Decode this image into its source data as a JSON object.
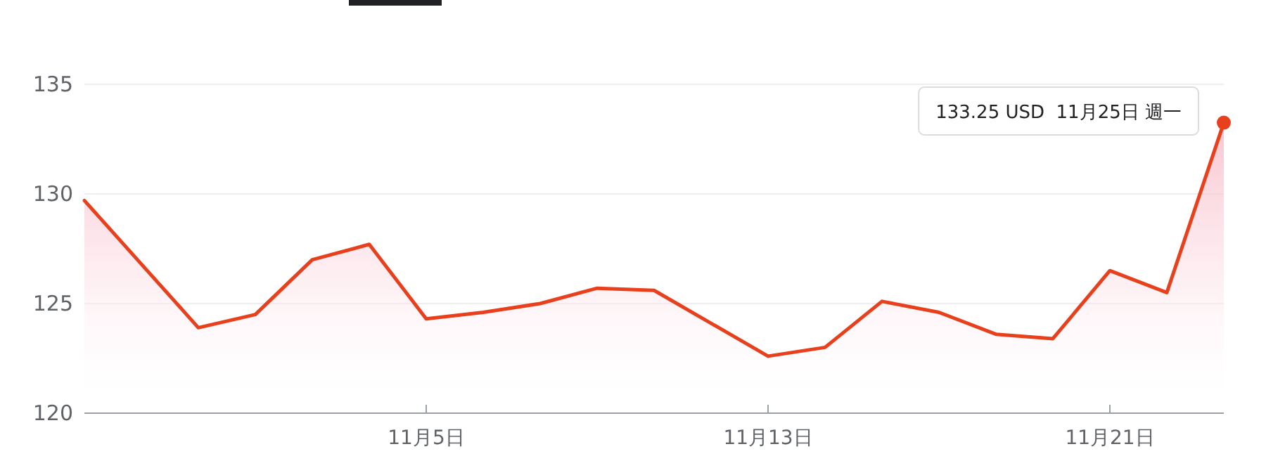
{
  "chart_data": {
    "type": "area",
    "categories": [
      null,
      null,
      null,
      null,
      null,
      null,
      "11月5日",
      null,
      null,
      null,
      null,
      null,
      "11月13日",
      null,
      null,
      null,
      null,
      null,
      "11月21日",
      null,
      null
    ],
    "series": [
      {
        "color": "#e8401c",
        "values": [
          129.7,
          126.8,
          123.9,
          124.5,
          127.0,
          127.7,
          124.3,
          124.6,
          125.0,
          125.7,
          125.6,
          124.1,
          122.6,
          123.0,
          125.1,
          124.6,
          123.6,
          123.4,
          126.5,
          125.5,
          133.25
        ]
      }
    ],
    "ylim": [
      120,
      135
    ],
    "yticks": [
      120,
      125,
      130,
      135
    ],
    "grid": "y",
    "annotations": [
      "133.25 USD  11月25日 週一"
    ]
  }
}
